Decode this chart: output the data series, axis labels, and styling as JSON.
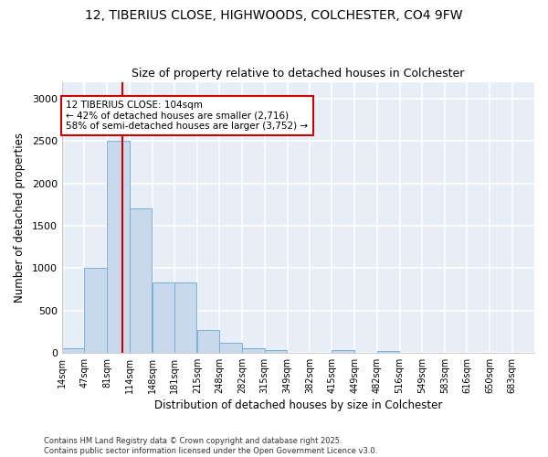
{
  "title_line1": "12, TIBERIUS CLOSE, HIGHWOODS, COLCHESTER, CO4 9FW",
  "title_line2": "Size of property relative to detached houses in Colchester",
  "xlabel": "Distribution of detached houses by size in Colchester",
  "ylabel": "Number of detached properties",
  "footnote": "Contains HM Land Registry data © Crown copyright and database right 2025.\nContains public sector information licensed under the Open Government Licence v3.0.",
  "bar_color": "#c8d9ed",
  "bar_edge_color": "#7aafd4",
  "background_color": "#e8eef8",
  "grid_color": "#ffffff",
  "fig_bg_color": "#ffffff",
  "vline_color": "#cc0000",
  "vline_x": 104,
  "annotation_text": "12 TIBERIUS CLOSE: 104sqm\n← 42% of detached houses are smaller (2,716)\n58% of semi-detached houses are larger (3,752) →",
  "annotation_box_color": "#cc0000",
  "categories": [
    "14sqm",
    "47sqm",
    "81sqm",
    "114sqm",
    "148sqm",
    "181sqm",
    "215sqm",
    "248sqm",
    "282sqm",
    "315sqm",
    "349sqm",
    "382sqm",
    "415sqm",
    "449sqm",
    "482sqm",
    "516sqm",
    "549sqm",
    "583sqm",
    "616sqm",
    "650sqm",
    "683sqm"
  ],
  "bin_starts": [
    14,
    47,
    81,
    114,
    148,
    181,
    215,
    248,
    282,
    315,
    349,
    382,
    415,
    449,
    482,
    516,
    549,
    583,
    616,
    650,
    683
  ],
  "bin_width": 33,
  "values": [
    50,
    1000,
    2500,
    1700,
    830,
    830,
    270,
    120,
    50,
    30,
    0,
    0,
    30,
    0,
    20,
    0,
    0,
    0,
    0,
    0,
    0
  ],
  "ylim": [
    0,
    3200
  ],
  "yticks": [
    0,
    500,
    1000,
    1500,
    2000,
    2500,
    3000
  ]
}
